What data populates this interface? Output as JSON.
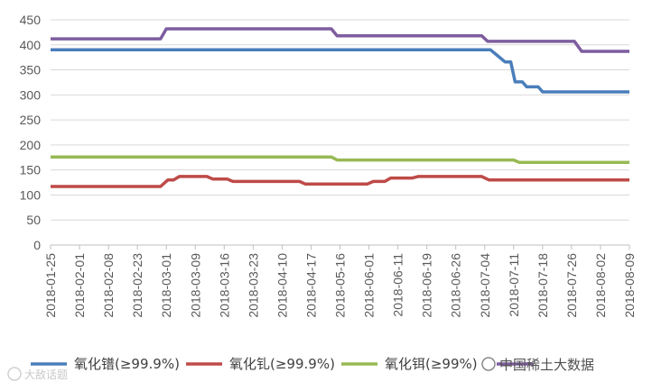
{
  "chart_data": {
    "type": "line",
    "title": "",
    "xlabel": "",
    "ylabel": "",
    "ylim": [
      0,
      450
    ],
    "yticks": [
      0,
      50,
      100,
      150,
      200,
      250,
      300,
      350,
      400,
      450
    ],
    "grid": true,
    "legend_position": "bottom",
    "x_tick_labels": [
      "2018-01-25",
      "2018-02-01",
      "2018-02-08",
      "2018-02-23",
      "2018-03-01",
      "2018-03-09",
      "2018-03-16",
      "2018-03-23",
      "2018-04-10",
      "2018-04-17",
      "2018-05-16",
      "2018-06-01",
      "2018-06-11",
      "2018-06-19",
      "2018-06-26",
      "2018-07-04",
      "2018-07-11",
      "2018-07-18",
      "2018-07-26",
      "2018-08-02",
      "2018-08-09"
    ],
    "x_range": [
      0,
      20
    ],
    "series": [
      {
        "name": "氧化镨(≥99.9%)",
        "color": "#4a7ebb",
        "points": [
          [
            0,
            390
          ],
          [
            15.2,
            390
          ],
          [
            15.45,
            378
          ],
          [
            15.7,
            366
          ],
          [
            15.9,
            366
          ],
          [
            16.05,
            326
          ],
          [
            16.3,
            326
          ],
          [
            16.45,
            316
          ],
          [
            16.85,
            316
          ],
          [
            17.0,
            306
          ],
          [
            20,
            306
          ]
        ]
      },
      {
        "name": "氧化钆(≥99.9%)",
        "color": "#be4b48",
        "points": [
          [
            0,
            117
          ],
          [
            3.8,
            117
          ],
          [
            4.05,
            130
          ],
          [
            4.25,
            130
          ],
          [
            4.45,
            137
          ],
          [
            5.4,
            137
          ],
          [
            5.6,
            132
          ],
          [
            6.1,
            132
          ],
          [
            6.3,
            127
          ],
          [
            8.6,
            127
          ],
          [
            8.8,
            122
          ],
          [
            10.95,
            122
          ],
          [
            11.15,
            127
          ],
          [
            11.55,
            127
          ],
          [
            11.75,
            134
          ],
          [
            12.5,
            134
          ],
          [
            12.7,
            137
          ],
          [
            14.9,
            137
          ],
          [
            15.15,
            130
          ],
          [
            20,
            130
          ]
        ]
      },
      {
        "name": "氧化铒(≥99%)",
        "color": "#98b954",
        "points": [
          [
            0,
            176
          ],
          [
            9.7,
            176
          ],
          [
            9.9,
            170
          ],
          [
            16.0,
            170
          ],
          [
            16.2,
            165
          ],
          [
            20,
            165
          ]
        ]
      },
      {
        "name": "",
        "color": "#7e5d9f",
        "points": [
          [
            0,
            412
          ],
          [
            3.8,
            412
          ],
          [
            4.0,
            432
          ],
          [
            9.7,
            432
          ],
          [
            9.9,
            418
          ],
          [
            14.9,
            418
          ],
          [
            15.1,
            407
          ],
          [
            18.1,
            407
          ],
          [
            18.35,
            387
          ],
          [
            20,
            387
          ]
        ]
      }
    ]
  },
  "watermark": {
    "left_text": "大敌话题",
    "right_text": "中国稀土大数据"
  }
}
